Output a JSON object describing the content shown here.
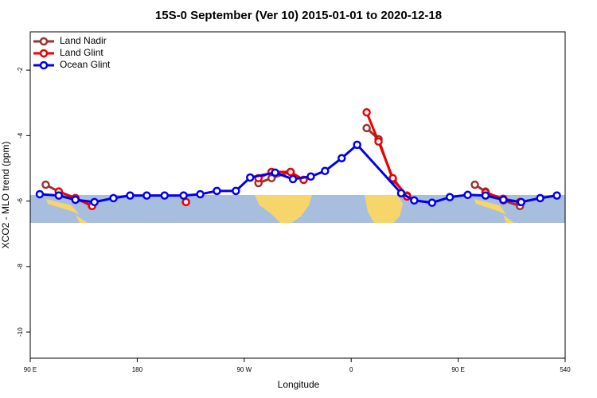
{
  "chart_data": {
    "type": "line",
    "title": "15S-0 September (Ver 10)   2015-01-01 to 2020-12-18",
    "x_label": "Longitude",
    "y_label": "XCO2 - MLO trend (ppm)",
    "xlim": [
      90,
      540
    ],
    "ylim": [
      -10.8,
      -0.83
    ],
    "xticks": [
      {
        "value": 90,
        "label": "90 E"
      },
      180,
      {
        "value": 270,
        "label": "90 W"
      },
      {
        "value": 360,
        "label": "0"
      },
      {
        "value": 450,
        "label": "90 E"
      },
      540
    ],
    "yticks": [
      -2,
      -4,
      -6,
      -8,
      -10
    ],
    "legend": "top-left",
    "series": [
      {
        "name": "Land Nadir",
        "color": "#993333",
        "x": [
          103,
          114,
          128,
          142,
          200,
          282,
          293,
          309,
          340,
          373,
          383,
          395,
          407,
          430,
          464,
          473,
          488,
          502
        ],
        "values": [
          -5.5,
          -5.71,
          -5.91,
          -6.15,
          null,
          -5.45,
          -5.3,
          -5.11,
          null,
          -3.77,
          -4.11,
          -5.35,
          -5.83,
          null,
          -5.5,
          -5.71,
          -5.98,
          -6.15
        ]
      },
      {
        "name": "Land Glint",
        "color": "#ee0000",
        "x": [
          114,
          128,
          142,
          180,
          221,
          260,
          282,
          293,
          309,
          320,
          345,
          373,
          383,
          395,
          407,
          440,
          473,
          488,
          502
        ],
        "values": [
          -5.71,
          -5.91,
          -6.15,
          null,
          -6.03,
          null,
          -5.3,
          -5.11,
          -5.11,
          -5.35,
          null,
          -3.29,
          -4.18,
          -5.3,
          -5.86,
          null,
          -5.74,
          -5.93,
          -6.03
        ]
      },
      {
        "name": "Ocean Glint",
        "color": "#0000ee",
        "x": [
          98,
          114,
          128,
          144,
          160,
          174,
          188,
          203,
          219,
          233,
          247,
          263,
          275,
          296,
          311,
          326,
          338,
          352,
          365,
          402,
          413,
          428,
          443,
          458,
          473,
          488,
          503,
          519,
          533
        ],
        "values": [
          -5.79,
          -5.83,
          -5.96,
          -6.03,
          -5.91,
          -5.83,
          -5.83,
          -5.83,
          -5.83,
          -5.79,
          -5.69,
          -5.69,
          -5.28,
          -5.13,
          -5.33,
          -5.25,
          -5.08,
          -4.69,
          -4.28,
          -5.76,
          -5.98,
          -6.05,
          -5.88,
          -5.81,
          -5.83,
          -5.96,
          -6.03,
          -5.91,
          -5.83
        ]
      }
    ]
  }
}
